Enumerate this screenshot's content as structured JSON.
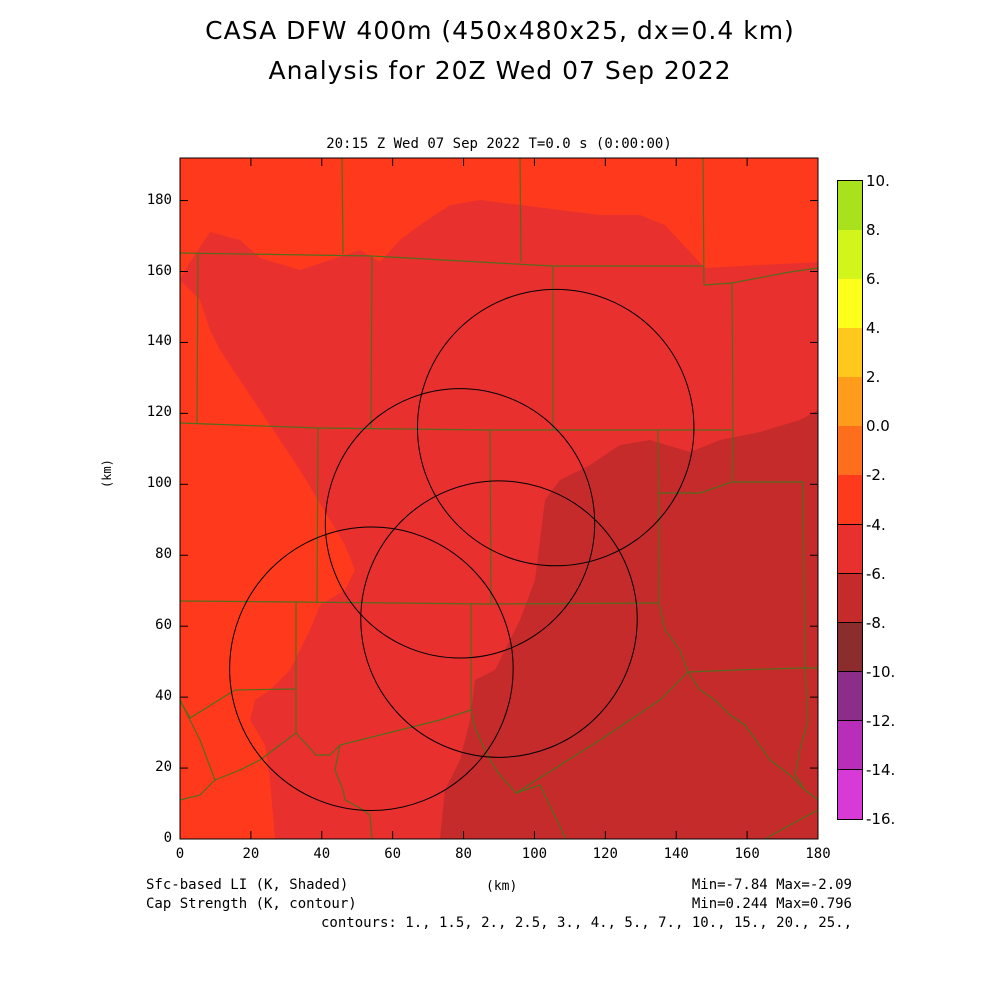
{
  "title_line1": "CASA DFW 400m (450x480x25, dx=0.4 km)",
  "title_line2": "Analysis for 20Z Wed 07 Sep 2022",
  "subtitle": "20:15 Z Wed 07 Sep 2022    T=0.0 s (0:00:00)",
  "y_axis_label": "(km)",
  "x_axis_label": "(km)",
  "y_ticks": [
    "0",
    "20",
    "40",
    "60",
    "80",
    "100",
    "120",
    "140",
    "160",
    "180"
  ],
  "x_ticks": [
    "0",
    "20",
    "40",
    "60",
    "80",
    "100",
    "120",
    "140",
    "160",
    "180"
  ],
  "footer": {
    "shaded_label": "Sfc-based LI (K, Shaded)",
    "contour_label": "Cap Strength (K, contour)",
    "shaded_minmax": "Min=-7.84 Max=-2.09",
    "contour_minmax": "Min=0.244 Max=0.796",
    "contours": "contours: 1., 1.5, 2., 2.5, 3., 4., 5., 7., 10., 15., 20., 25.,"
  },
  "colorbar": {
    "labels": [
      "10.",
      "8.",
      "6.",
      "4.",
      "2.",
      "0.0",
      "-2.",
      "-4.",
      "-6.",
      "-8.",
      "-10.",
      "-12.",
      "-14.",
      "-16."
    ],
    "colors": [
      "#a8e21c",
      "#d2f51c",
      "#ffff1c",
      "#ffc81c",
      "#ff9c1c",
      "#ff6e1c",
      "#ff3a1c",
      "#e8302e",
      "#c52b2b",
      "#8c2d2d",
      "#8a2e8a",
      "#b82eb8",
      "#d83ad8"
    ]
  },
  "map": {
    "x_range_km": [
      0,
      180
    ],
    "y_range_km": [
      0,
      192
    ],
    "colors": {
      "lighter_red": "#ff3a1c",
      "mid_red": "#e8302e",
      "dark_red": "#c52b2b",
      "county_lines": "#556b1c",
      "radar_rings": "#000000"
    },
    "radar_rings_km": [
      {
        "cx": 106,
        "cy": 116,
        "r": 39
      },
      {
        "cx": 79,
        "cy": 89,
        "r": 38
      },
      {
        "cx": 90,
        "cy": 62,
        "r": 39
      },
      {
        "cx": 54,
        "cy": 48,
        "r": 40
      }
    ]
  }
}
